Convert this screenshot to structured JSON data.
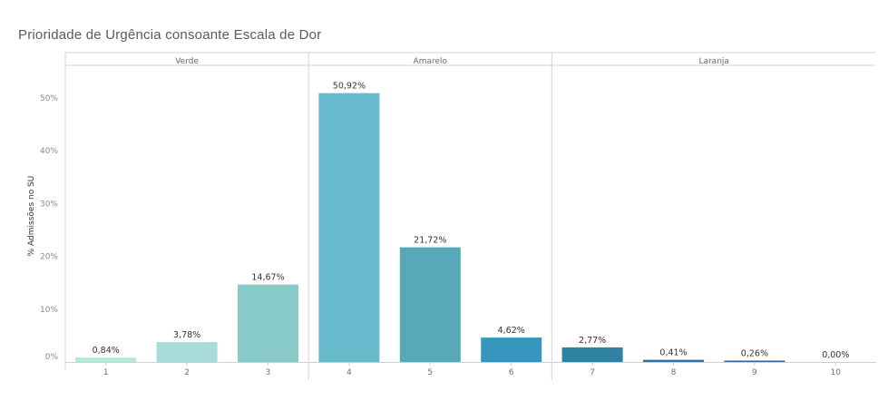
{
  "chart_data": {
    "type": "bar",
    "title": "Prioridade de Urgência consoante Escala de Dor",
    "ylabel": "% Admissões no SU",
    "xlabel": "",
    "ylim": [
      0,
      55
    ],
    "yticks": [
      0,
      10,
      20,
      30,
      40,
      50
    ],
    "yticklabels": [
      "0%",
      "10%",
      "20%",
      "30%",
      "40%",
      "50%"
    ],
    "grid": false,
    "panels": [
      {
        "name": "Verde",
        "categories": [
          "1",
          "2",
          "3"
        ]
      },
      {
        "name": "Amarelo",
        "categories": [
          "4",
          "5",
          "6"
        ]
      },
      {
        "name": "Laranja",
        "categories": [
          "7",
          "8",
          "9",
          "10"
        ]
      }
    ],
    "categories": [
      "1",
      "2",
      "3",
      "4",
      "5",
      "6",
      "7",
      "8",
      "9",
      "10"
    ],
    "values": [
      0.84,
      3.78,
      14.67,
      50.92,
      21.72,
      4.62,
      2.77,
      0.41,
      0.26,
      0.0
    ],
    "data_labels": [
      "0,84%",
      "3,78%",
      "14,67%",
      "50,92%",
      "21,72%",
      "4,62%",
      "2,77%",
      "0,41%",
      "0,26%",
      "0,00%"
    ],
    "colors": [
      "#b3eadc",
      "#a8dcdc",
      "#88cbc9",
      "#67bbcc",
      "#57a9ba",
      "#3597bd",
      "#2f82a2",
      "#2f7198",
      "#2e6596",
      "#2c5b8e"
    ]
  }
}
